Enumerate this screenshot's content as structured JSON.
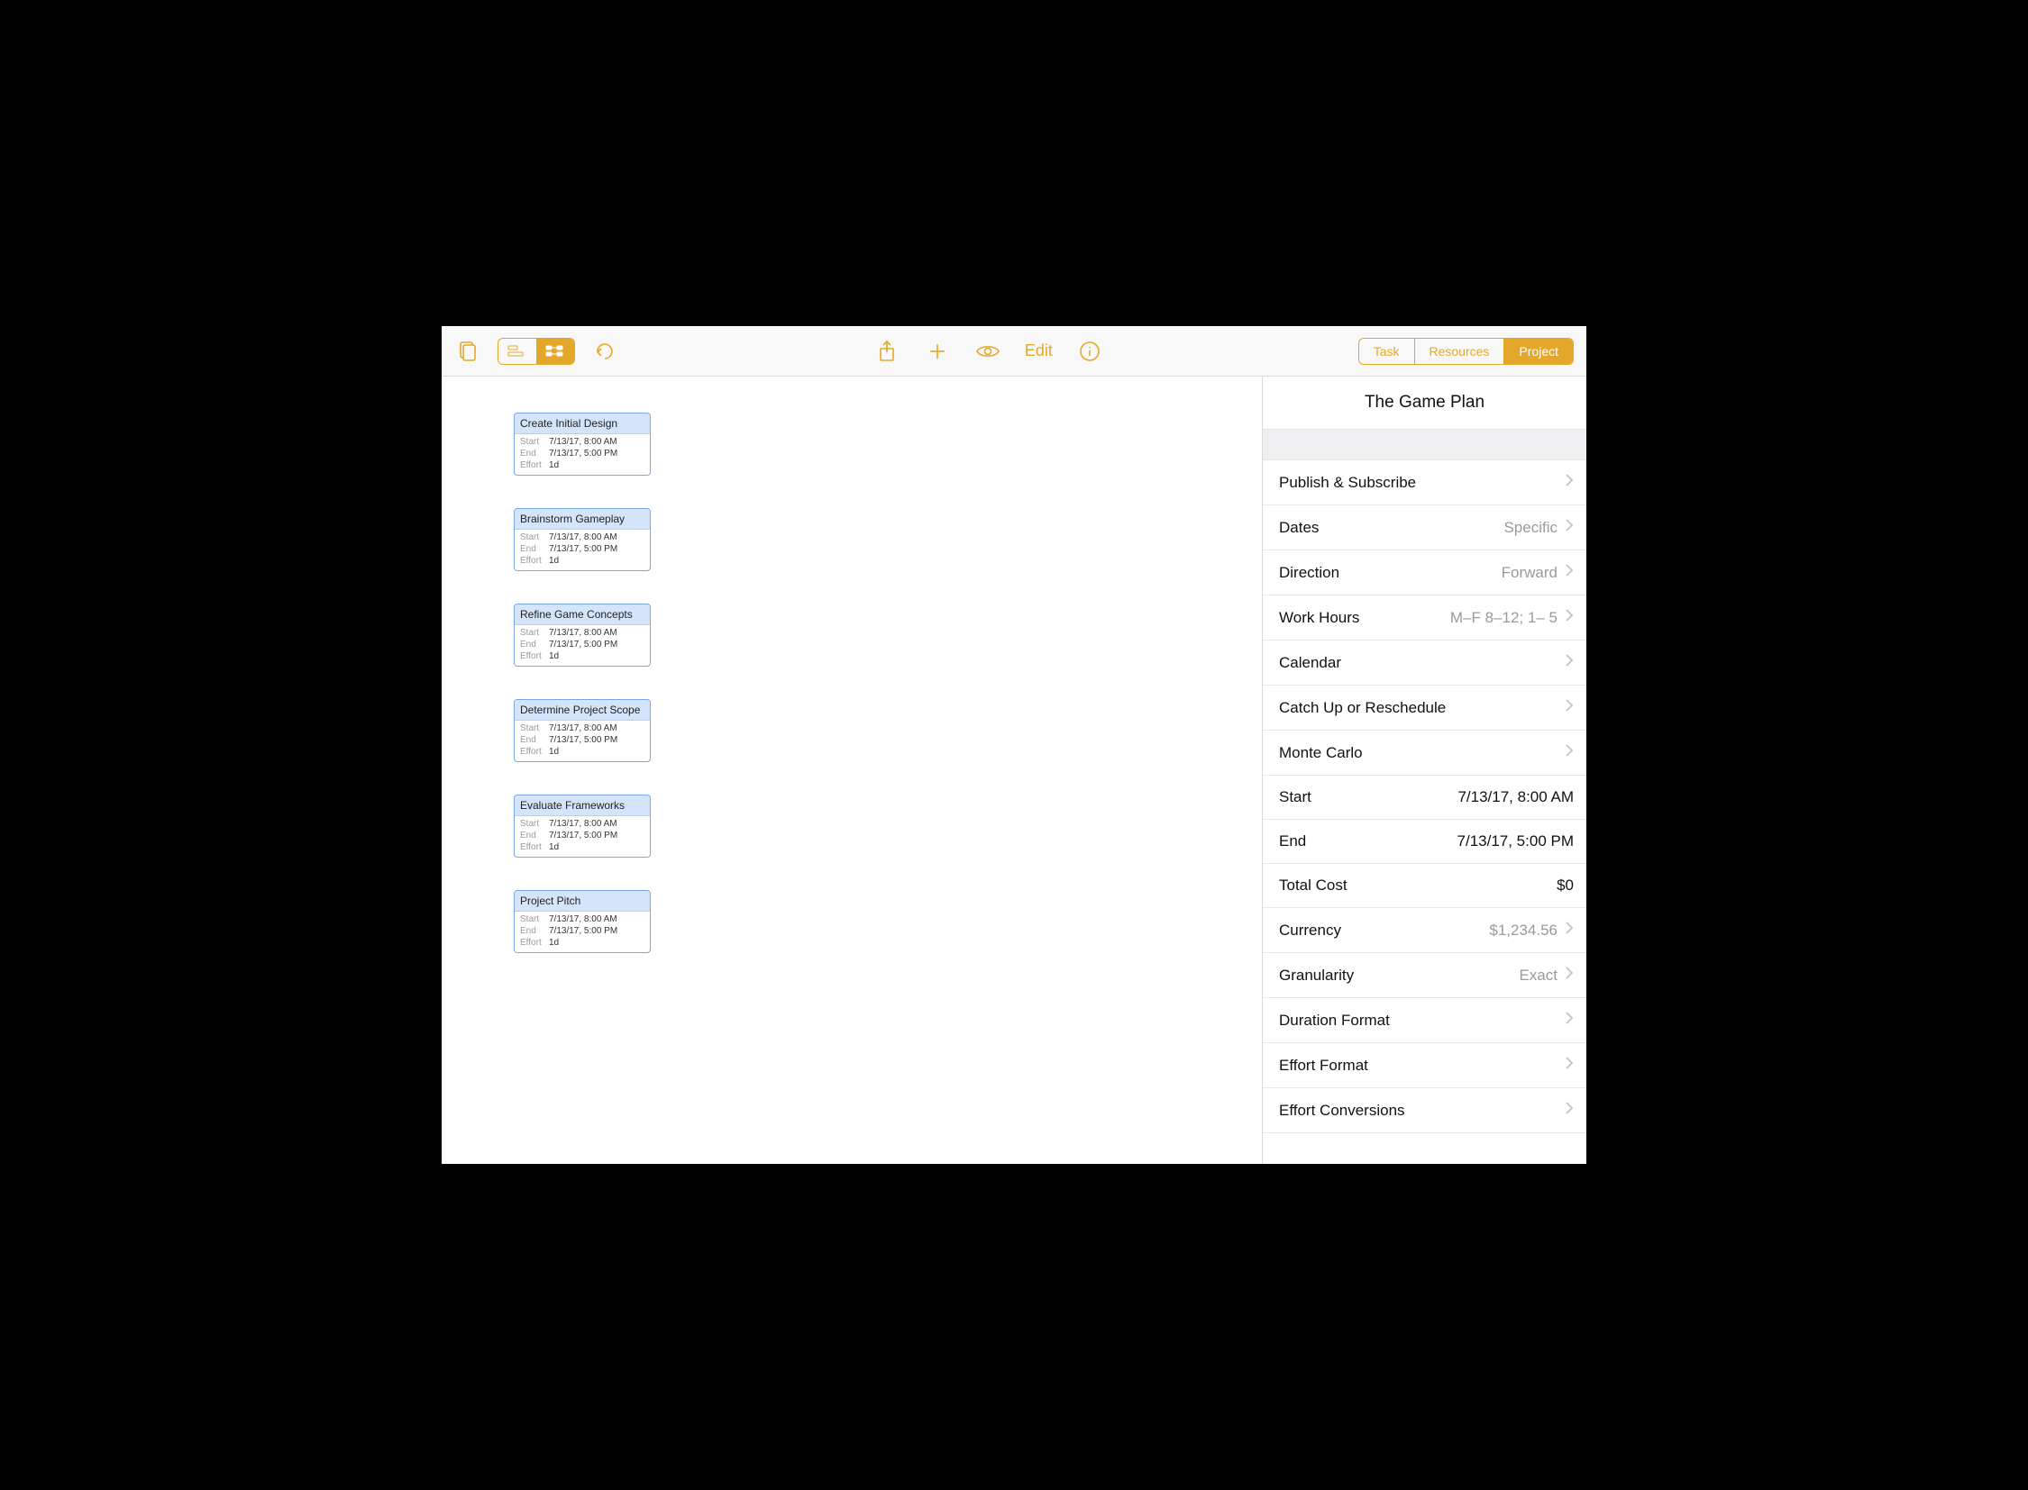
{
  "colors": {
    "accent": "#e3a829",
    "card_border": "#77a7e6",
    "card_header_bg": "#d4e4fa",
    "toolbar_bg": "#f8f8f8",
    "divider": "#d9d9d9",
    "muted": "#9a9a9a",
    "chevron": "#c7c7cc"
  },
  "toolbar": {
    "edit_label": "Edit",
    "tabs": {
      "task": "Task",
      "resources": "Resources",
      "project": "Project"
    },
    "active_tab": "project"
  },
  "project": {
    "title": "The Game Plan",
    "settings": [
      {
        "label": "Publish & Subscribe",
        "value": "",
        "chev": true
      },
      {
        "label": "Dates",
        "value": "Specific",
        "chev": true
      },
      {
        "label": "Direction",
        "value": "Forward",
        "chev": true
      },
      {
        "label": "Work Hours",
        "value": "M–F  8–12; 1– 5",
        "chev": true
      },
      {
        "label": "Calendar",
        "value": "",
        "chev": true
      },
      {
        "label": "Catch Up or Reschedule",
        "value": "",
        "chev": true
      },
      {
        "label": "Monte Carlo",
        "value": "",
        "chev": true
      },
      {
        "label": "Start",
        "value": "7/13/17, 8:00 AM",
        "chev": false,
        "plain": true
      },
      {
        "label": "End",
        "value": "7/13/17, 5:00 PM",
        "chev": false,
        "plain": true
      },
      {
        "label": "Total Cost",
        "value": "$0",
        "chev": false,
        "plain": true
      },
      {
        "label": "Currency",
        "value": "$1,234.56",
        "chev": true
      },
      {
        "label": "Granularity",
        "value": "Exact",
        "chev": true
      },
      {
        "label": "Duration Format",
        "value": "",
        "chev": true
      },
      {
        "label": "Effort Format",
        "value": "",
        "chev": true
      },
      {
        "label": "Effort Conversions",
        "value": "",
        "chev": true
      }
    ]
  },
  "tasks": [
    {
      "title": "Create Initial Design",
      "start": "7/13/17, 8:00 AM",
      "end": "7/13/17, 5:00 PM",
      "effort": "1d"
    },
    {
      "title": "Brainstorm Gameplay",
      "start": "7/13/17, 8:00 AM",
      "end": "7/13/17, 5:00 PM",
      "effort": "1d"
    },
    {
      "title": "Refine Game Concepts",
      "start": "7/13/17, 8:00 AM",
      "end": "7/13/17, 5:00 PM",
      "effort": "1d"
    },
    {
      "title": "Determine Project Scope",
      "start": "7/13/17, 8:00 AM",
      "end": "7/13/17, 5:00 PM",
      "effort": "1d"
    },
    {
      "title": "Evaluate Frameworks",
      "start": "7/13/17, 8:00 AM",
      "end": "7/13/17, 5:00 PM",
      "effort": "1d"
    },
    {
      "title": "Project Pitch",
      "start": "7/13/17, 8:00 AM",
      "end": "7/13/17, 5:00 PM",
      "effort": "1d"
    }
  ],
  "labels": {
    "start": "Start",
    "end": "End",
    "effort": "Effort"
  }
}
